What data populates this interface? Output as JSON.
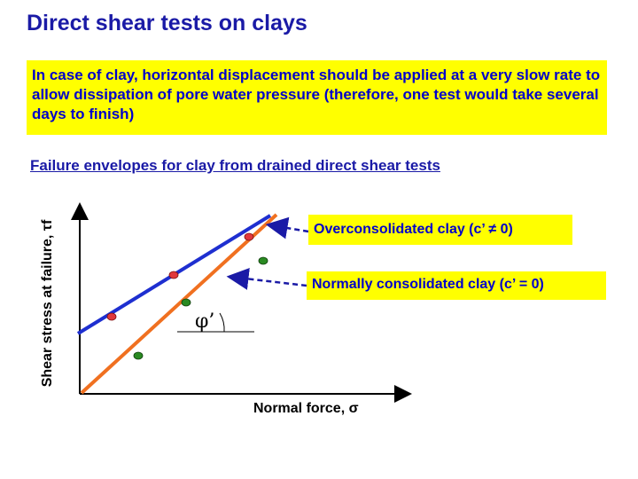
{
  "slide": {
    "title": "Direct shear tests on clays",
    "note": "In case of clay, horizontal displacement should be applied at a very slow rate to allow dissipation of pore water pressure (therefore, one test would take several days to finish)",
    "subtitle": "Failure envelopes for clay from drained direct shear tests"
  },
  "diagram": {
    "y_axis_label": "Shear stress at failure, τf",
    "x_axis_label": "Normal force, σ",
    "angle_label": "φ’",
    "callouts": {
      "overconsolidated": "Overconsolidated clay (c’ ≠ 0)",
      "normally_consolidated": "Normally consolidated clay (c’ = 0)"
    },
    "colors": {
      "overconsolidated_line": "#1e2fd0",
      "normally_consolidated_line": "#f07020",
      "overconsolidated_points": "#e0383c",
      "normally_consolidated_points": "#2a8a22",
      "callout_background": "#ffff00",
      "text_blue": "#0000cc"
    }
  }
}
